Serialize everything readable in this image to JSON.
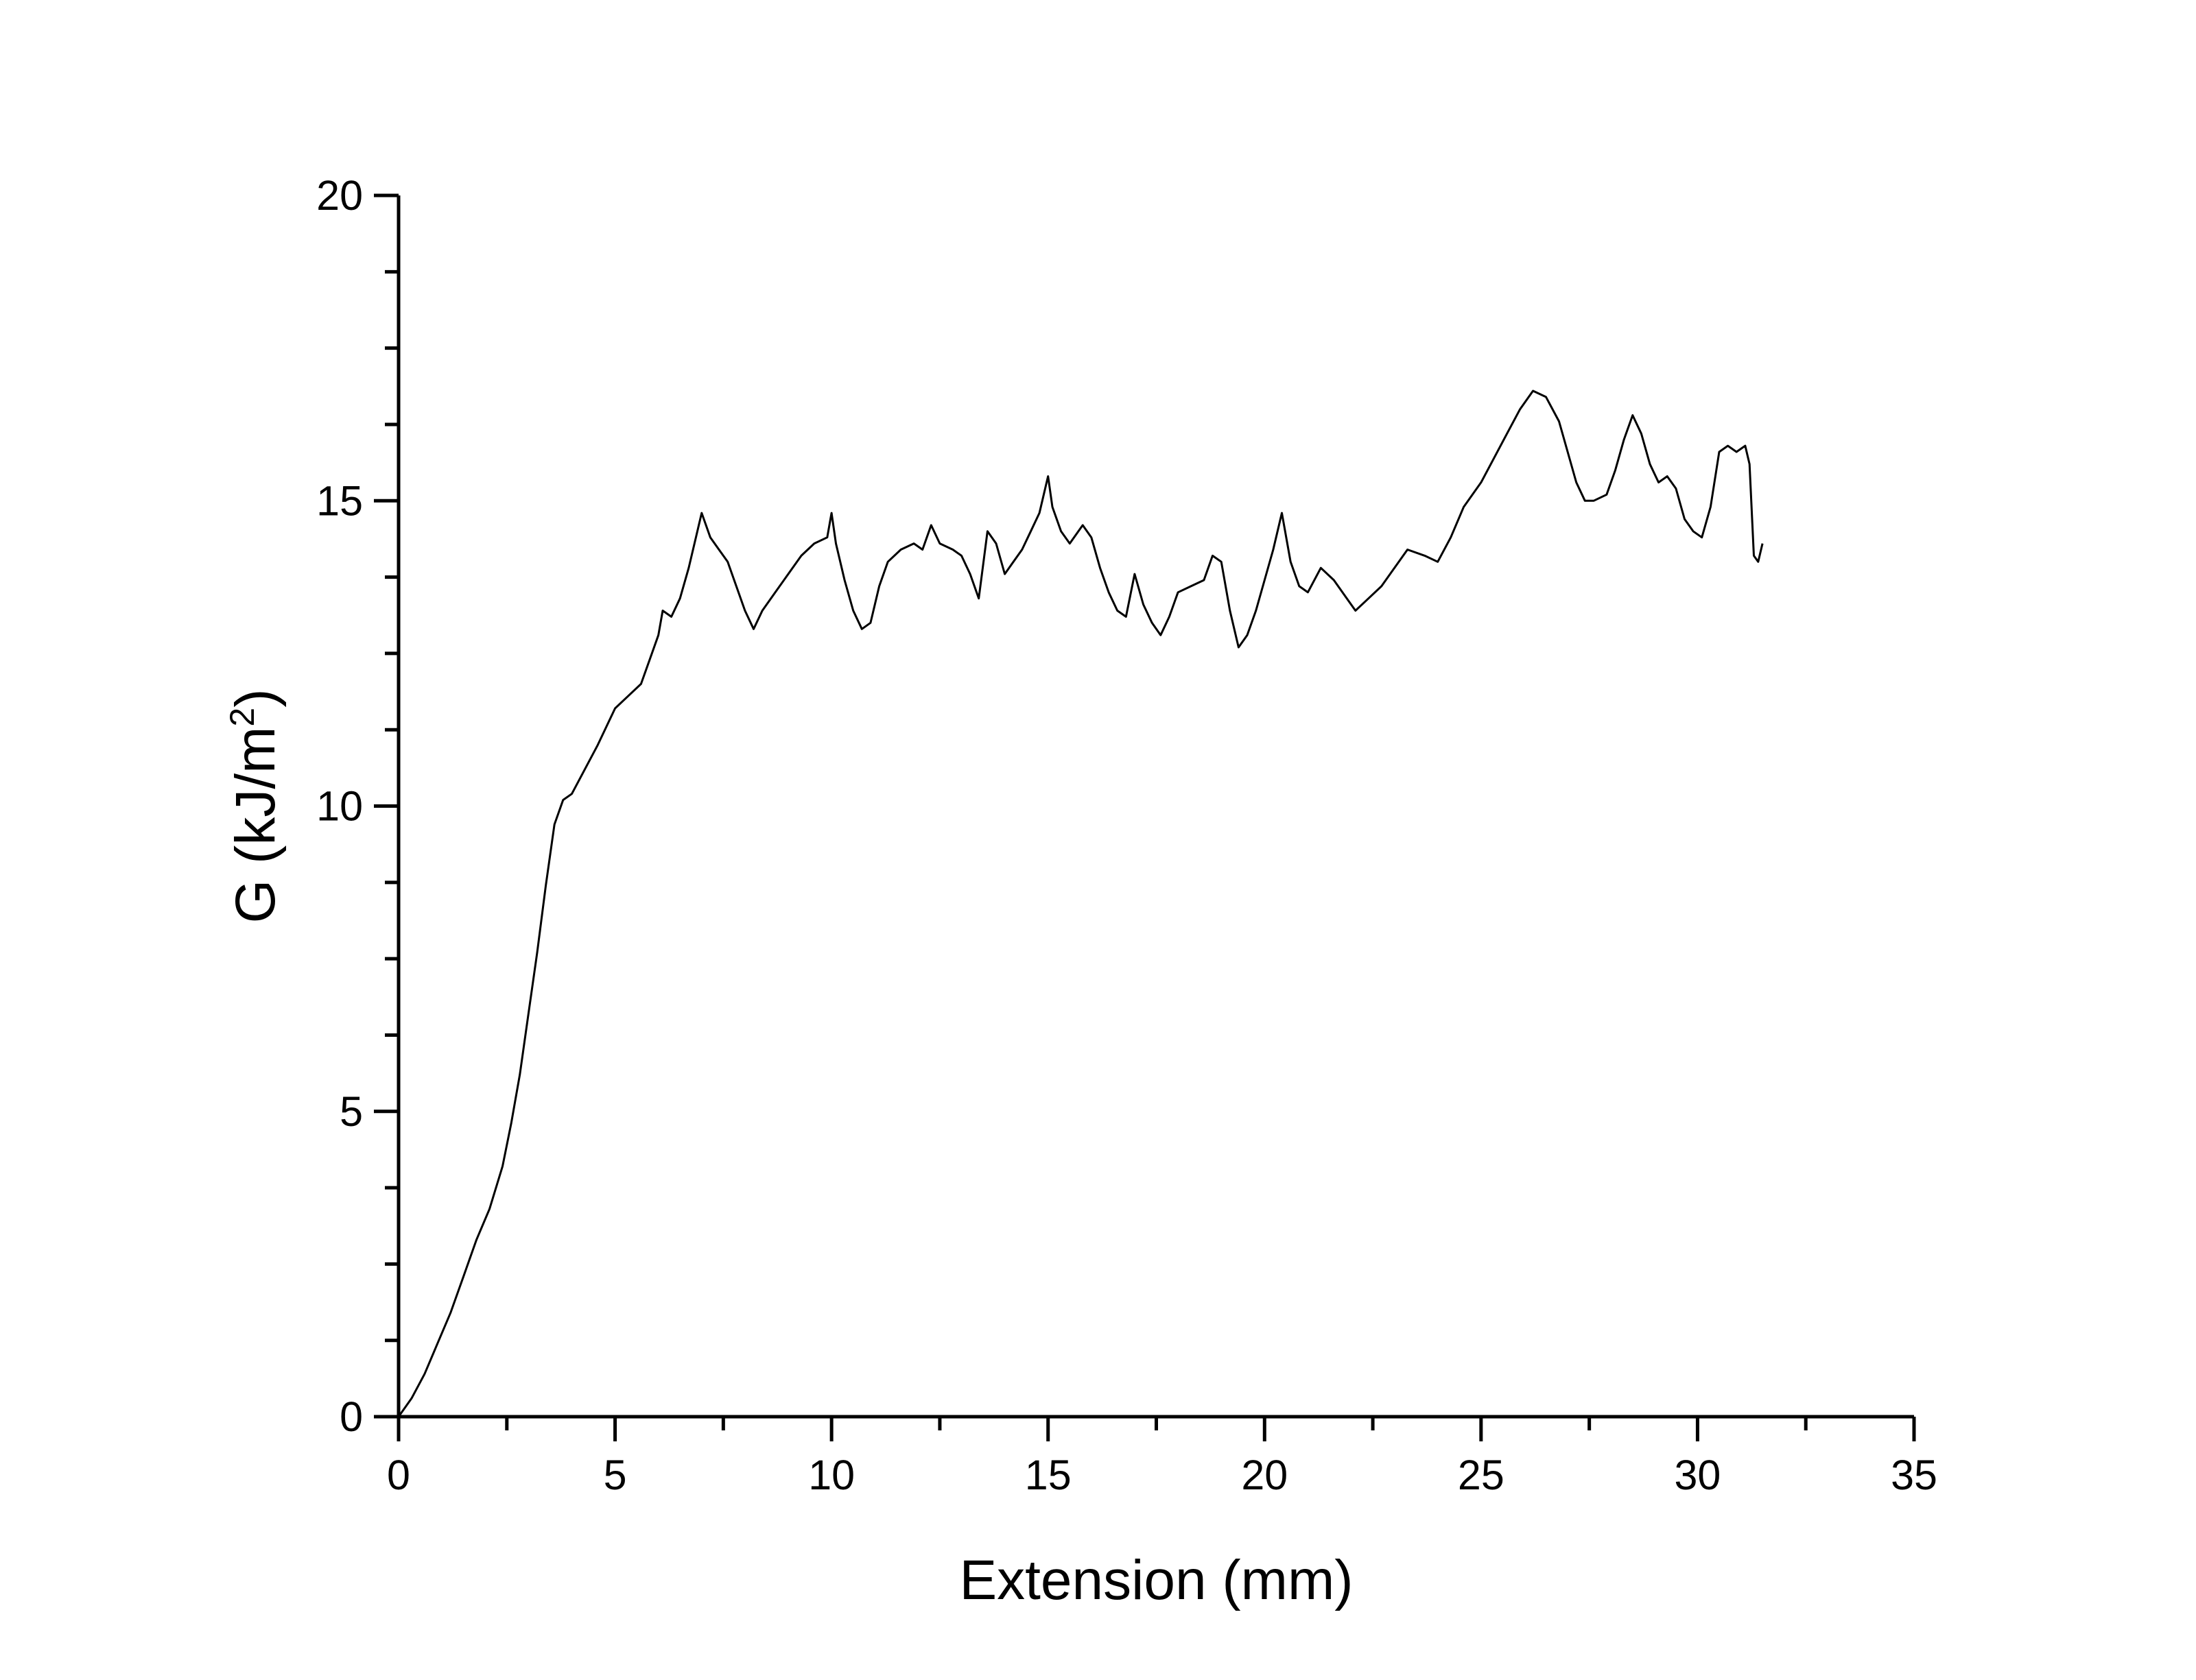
{
  "chart_data": {
    "type": "line",
    "title": "",
    "xlabel": "Extension (mm)",
    "ylabel": {
      "prefix": "G (kJ/m",
      "superscript": "2",
      "suffix": ")"
    },
    "xlim": [
      0,
      35
    ],
    "ylim": [
      0,
      20
    ],
    "x_ticks": [
      0,
      5,
      10,
      15,
      20,
      25,
      30,
      35
    ],
    "x_tick_labels": [
      "0",
      "5",
      "10",
      "15",
      "20",
      "25",
      "30",
      "35"
    ],
    "y_ticks": [
      0,
      5,
      10,
      15,
      20
    ],
    "y_tick_labels": [
      "0",
      "5",
      "10",
      "15",
      "20"
    ],
    "grid": false,
    "legend": "none",
    "series": [
      {
        "color": "#000000",
        "points": [
          [
            0.0,
            0.0
          ],
          [
            0.3,
            0.3
          ],
          [
            0.6,
            0.7
          ],
          [
            0.9,
            1.2
          ],
          [
            1.2,
            1.7
          ],
          [
            1.5,
            2.3
          ],
          [
            1.8,
            2.9
          ],
          [
            2.1,
            3.4
          ],
          [
            2.4,
            4.1
          ],
          [
            2.6,
            4.8
          ],
          [
            2.8,
            5.6
          ],
          [
            3.0,
            6.6
          ],
          [
            3.2,
            7.6
          ],
          [
            3.4,
            8.7
          ],
          [
            3.6,
            9.7
          ],
          [
            3.8,
            10.1
          ],
          [
            4.0,
            10.2
          ],
          [
            4.3,
            10.6
          ],
          [
            4.6,
            11.0
          ],
          [
            5.0,
            11.6
          ],
          [
            5.3,
            11.8
          ],
          [
            5.6,
            12.0
          ],
          [
            5.8,
            12.4
          ],
          [
            6.0,
            12.8
          ],
          [
            6.1,
            13.2
          ],
          [
            6.3,
            13.1
          ],
          [
            6.5,
            13.4
          ],
          [
            6.7,
            13.9
          ],
          [
            6.9,
            14.5
          ],
          [
            7.0,
            14.8
          ],
          [
            7.2,
            14.4
          ],
          [
            7.4,
            14.2
          ],
          [
            7.6,
            14.0
          ],
          [
            7.8,
            13.6
          ],
          [
            8.0,
            13.2
          ],
          [
            8.2,
            12.9
          ],
          [
            8.4,
            13.2
          ],
          [
            8.7,
            13.5
          ],
          [
            9.0,
            13.8
          ],
          [
            9.3,
            14.1
          ],
          [
            9.6,
            14.3
          ],
          [
            9.9,
            14.4
          ],
          [
            10.0,
            14.8
          ],
          [
            10.1,
            14.3
          ],
          [
            10.3,
            13.7
          ],
          [
            10.5,
            13.2
          ],
          [
            10.7,
            12.9
          ],
          [
            10.9,
            13.0
          ],
          [
            11.1,
            13.6
          ],
          [
            11.3,
            14.0
          ],
          [
            11.6,
            14.2
          ],
          [
            11.9,
            14.3
          ],
          [
            12.1,
            14.2
          ],
          [
            12.3,
            14.6
          ],
          [
            12.5,
            14.3
          ],
          [
            12.8,
            14.2
          ],
          [
            13.0,
            14.1
          ],
          [
            13.2,
            13.8
          ],
          [
            13.4,
            13.4
          ],
          [
            13.6,
            14.5
          ],
          [
            13.8,
            14.3
          ],
          [
            14.0,
            13.8
          ],
          [
            14.2,
            14.0
          ],
          [
            14.4,
            14.2
          ],
          [
            14.6,
            14.5
          ],
          [
            14.8,
            14.8
          ],
          [
            15.0,
            15.4
          ],
          [
            15.1,
            14.9
          ],
          [
            15.3,
            14.5
          ],
          [
            15.5,
            14.3
          ],
          [
            15.8,
            14.6
          ],
          [
            16.0,
            14.4
          ],
          [
            16.2,
            13.9
          ],
          [
            16.4,
            13.5
          ],
          [
            16.6,
            13.2
          ],
          [
            16.8,
            13.1
          ],
          [
            17.0,
            13.8
          ],
          [
            17.2,
            13.3
          ],
          [
            17.4,
            13.0
          ],
          [
            17.6,
            12.8
          ],
          [
            17.8,
            13.1
          ],
          [
            18.0,
            13.5
          ],
          [
            18.3,
            13.6
          ],
          [
            18.6,
            13.7
          ],
          [
            18.8,
            14.1
          ],
          [
            19.0,
            14.0
          ],
          [
            19.2,
            13.2
          ],
          [
            19.4,
            12.6
          ],
          [
            19.6,
            12.8
          ],
          [
            19.8,
            13.2
          ],
          [
            20.0,
            13.7
          ],
          [
            20.2,
            14.2
          ],
          [
            20.4,
            14.8
          ],
          [
            20.6,
            14.0
          ],
          [
            20.8,
            13.6
          ],
          [
            21.0,
            13.5
          ],
          [
            21.3,
            13.9
          ],
          [
            21.6,
            13.7
          ],
          [
            21.9,
            13.4
          ],
          [
            22.1,
            13.2
          ],
          [
            22.4,
            13.4
          ],
          [
            22.7,
            13.6
          ],
          [
            23.0,
            13.9
          ],
          [
            23.3,
            14.2
          ],
          [
            23.7,
            14.1
          ],
          [
            24.0,
            14.0
          ],
          [
            24.3,
            14.4
          ],
          [
            24.6,
            14.9
          ],
          [
            25.0,
            15.3
          ],
          [
            25.3,
            15.7
          ],
          [
            25.6,
            16.1
          ],
          [
            25.9,
            16.5
          ],
          [
            26.2,
            16.8
          ],
          [
            26.5,
            16.7
          ],
          [
            26.8,
            16.3
          ],
          [
            27.0,
            15.8
          ],
          [
            27.2,
            15.3
          ],
          [
            27.4,
            15.0
          ],
          [
            27.6,
            15.0
          ],
          [
            27.9,
            15.1
          ],
          [
            28.1,
            15.5
          ],
          [
            28.3,
            16.0
          ],
          [
            28.5,
            16.4
          ],
          [
            28.7,
            16.1
          ],
          [
            28.9,
            15.6
          ],
          [
            29.1,
            15.3
          ],
          [
            29.3,
            15.4
          ],
          [
            29.5,
            15.2
          ],
          [
            29.7,
            14.7
          ],
          [
            29.9,
            14.5
          ],
          [
            30.1,
            14.4
          ],
          [
            30.3,
            14.9
          ],
          [
            30.5,
            15.8
          ],
          [
            30.7,
            15.9
          ],
          [
            30.9,
            15.8
          ],
          [
            31.1,
            15.9
          ],
          [
            31.2,
            15.6
          ],
          [
            31.3,
            14.1
          ],
          [
            31.4,
            14.0
          ],
          [
            31.5,
            14.3
          ]
        ]
      }
    ]
  }
}
